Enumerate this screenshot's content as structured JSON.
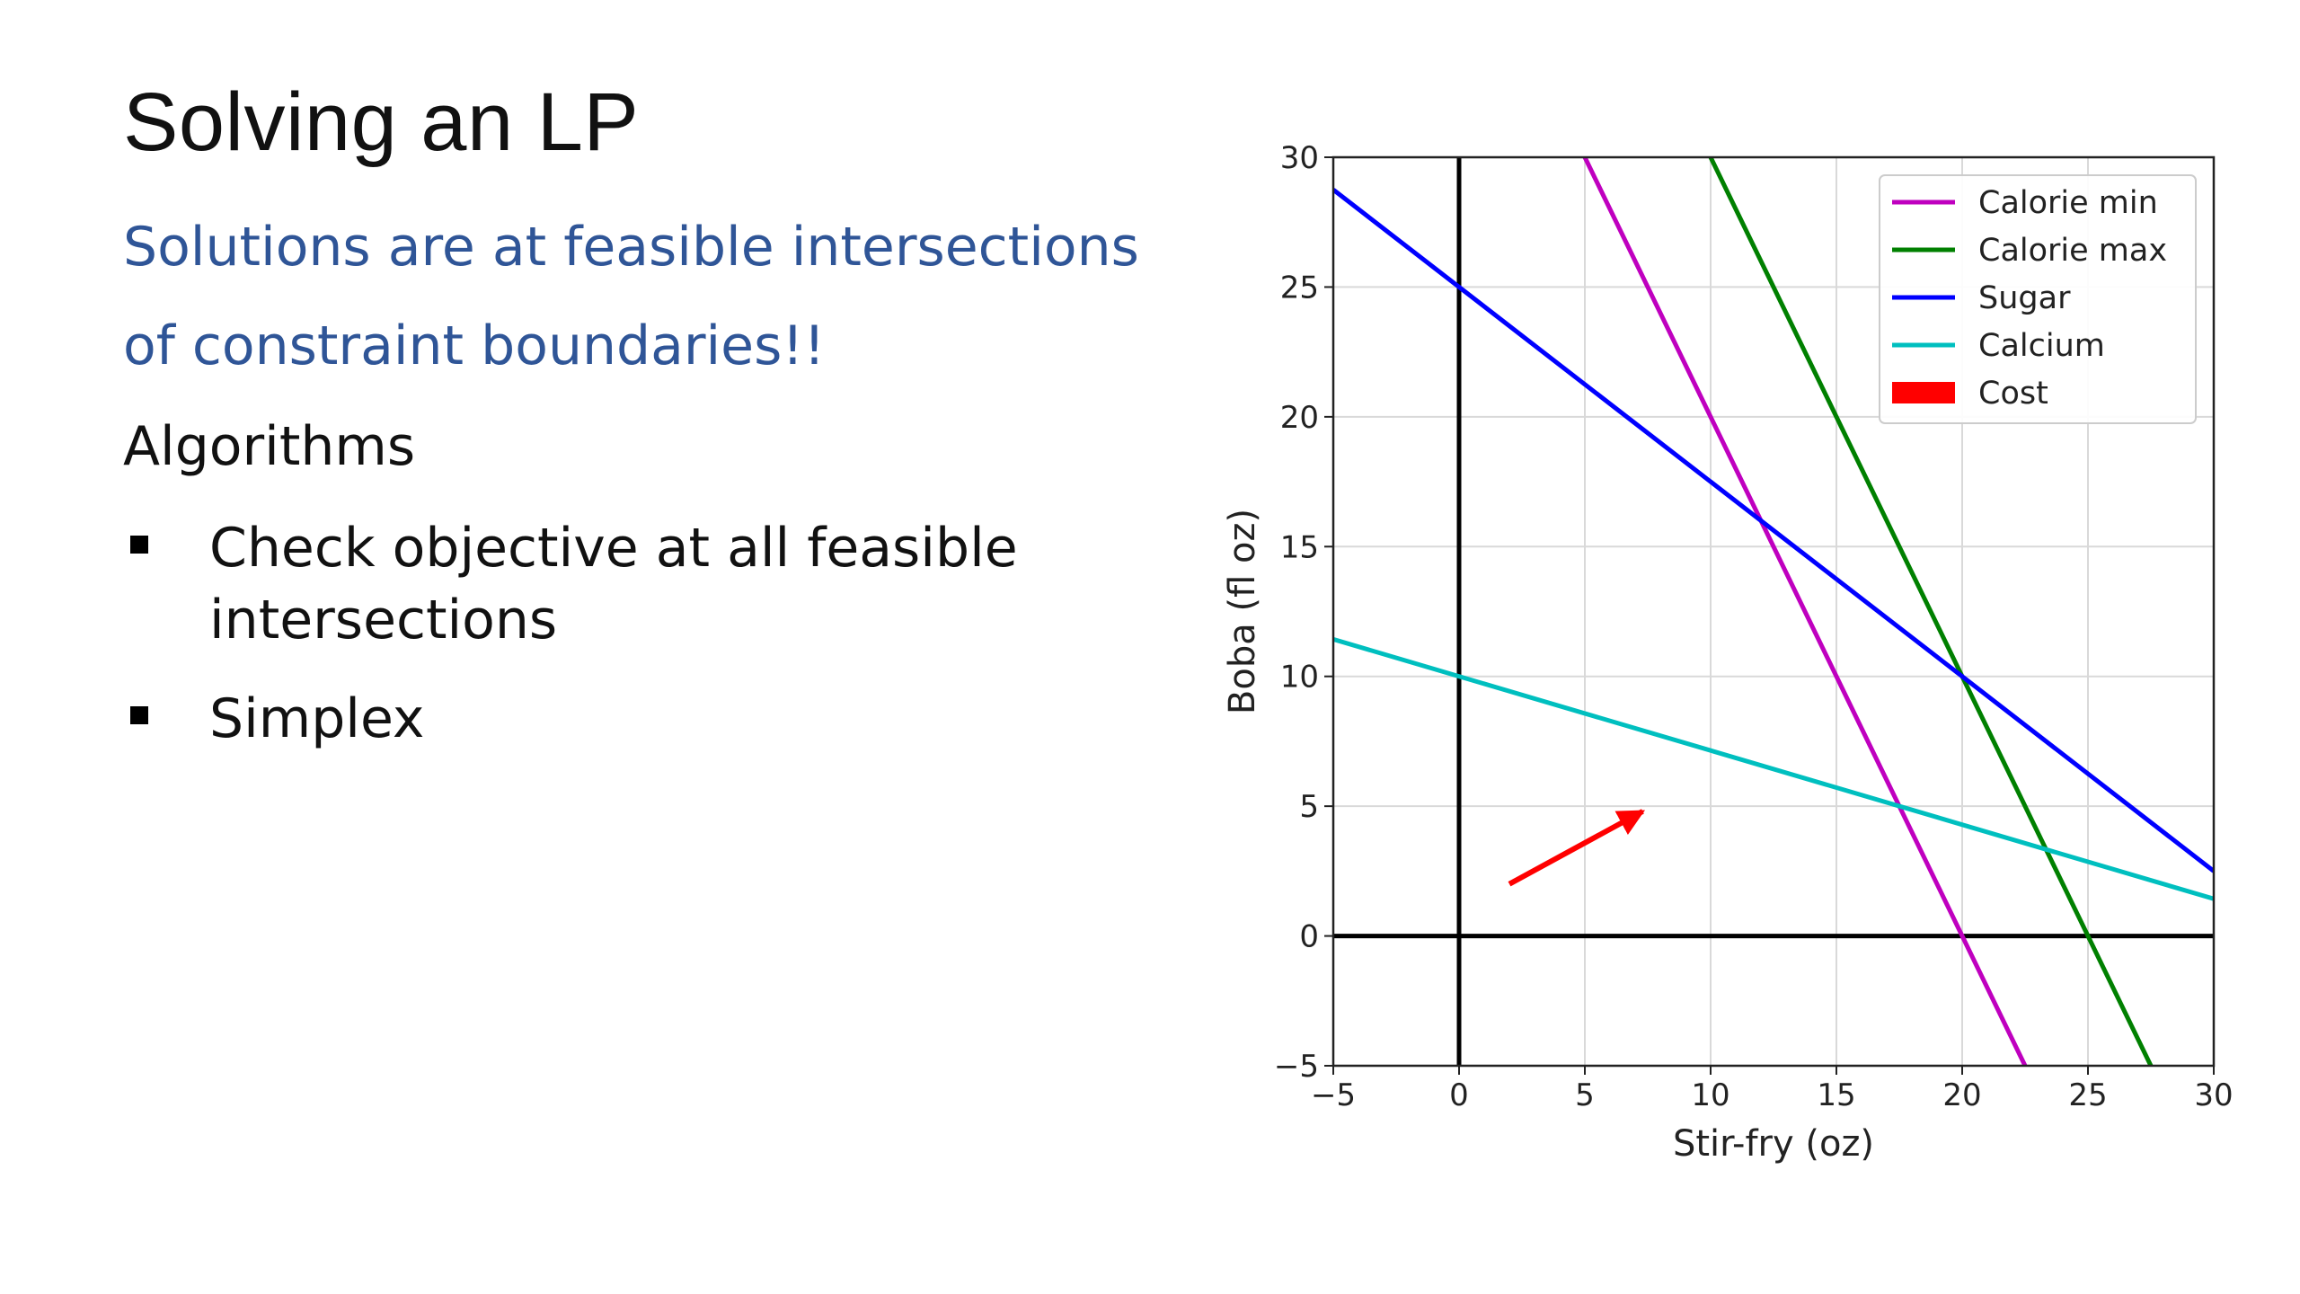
{
  "slide": {
    "title": "Solving an LP",
    "subtitle_lines": [
      "Solutions are at feasible intersections",
      "of constraint boundaries!!"
    ],
    "section_heading": "Algorithms",
    "bullets": [
      "Check objective at all feasible intersections",
      "Simplex"
    ]
  },
  "chart_data": {
    "type": "line",
    "title": "",
    "xlabel": "Stir-fry (oz)",
    "ylabel": "Boba (fl oz)",
    "xlim": [
      -5,
      30
    ],
    "ylim": [
      -5,
      30
    ],
    "x_ticks": [
      -5,
      0,
      5,
      10,
      15,
      20,
      25,
      30
    ],
    "y_ticks": [
      -5,
      0,
      5,
      10,
      15,
      20,
      25,
      30
    ],
    "x_tick_labels": [
      "−5",
      "0",
      "5",
      "10",
      "15",
      "20",
      "25",
      "30"
    ],
    "y_tick_labels": [
      "−5",
      "0",
      "5",
      "10",
      "15",
      "20",
      "25",
      "30"
    ],
    "grid": true,
    "legend_position": "top-right",
    "series": [
      {
        "name": "Calorie min",
        "color": "#bf00bf",
        "x": [
          5,
          22.5
        ],
        "y": [
          30,
          -5
        ]
      },
      {
        "name": "Calorie max",
        "color": "#008000",
        "x": [
          10,
          27.5
        ],
        "y": [
          30,
          -5
        ]
      },
      {
        "name": "Sugar",
        "color": "#0000ff",
        "x": [
          -5,
          30
        ],
        "y": [
          28.75,
          2.5
        ]
      },
      {
        "name": "Calcium",
        "color": "#00bfbf",
        "x": [
          -5,
          30
        ],
        "y": [
          11.43,
          1.43
        ]
      }
    ],
    "cost": {
      "name": "Cost",
      "color": "#ff0000",
      "arrow_start": [
        2,
        2
      ],
      "arrow_end": [
        7.3,
        4.8
      ]
    },
    "zero_axes_color": "#000000"
  }
}
